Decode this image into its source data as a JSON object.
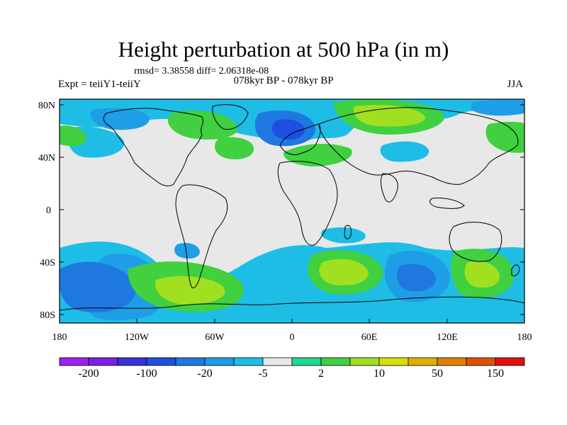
{
  "title": "Height perturbation at 500 hPa (in m)",
  "stats": "rmsd= 3.38558 diff= 2.06318e-08",
  "expt": "Expt = teiiY1-teiiY",
  "period": "078kyr BP - 078kyr BP",
  "season": "JJA",
  "lat_labels": [
    "80N",
    "40N",
    "0",
    "40S",
    "80S"
  ],
  "lon_labels": [
    "180",
    "120W",
    "60W",
    "0",
    "60E",
    "120E",
    "180"
  ],
  "colorbar_labels": [
    "-200",
    "-100",
    "-20",
    "-5",
    "2",
    "10",
    "50",
    "150"
  ],
  "colorbar_colors": [
    "#a020f0",
    "#7a1fe8",
    "#3a2fd8",
    "#1e4fe0",
    "#1e78e0",
    "#1e9ee6",
    "#1ebde6",
    "#e8e8e8",
    "#20d890",
    "#40d040",
    "#a0e020",
    "#d8e000",
    "#e0b000",
    "#e08000",
    "#e05000",
    "#e01010"
  ],
  "palette": {
    "neutral": "#e8e8e8",
    "neg_light": "#1ebde6",
    "neg_mid": "#1e9ee6",
    "neg_strong": "#1e78e0",
    "pos_light": "#20d890",
    "pos_mid": "#40d040",
    "pos_strong": "#a0e020"
  }
}
